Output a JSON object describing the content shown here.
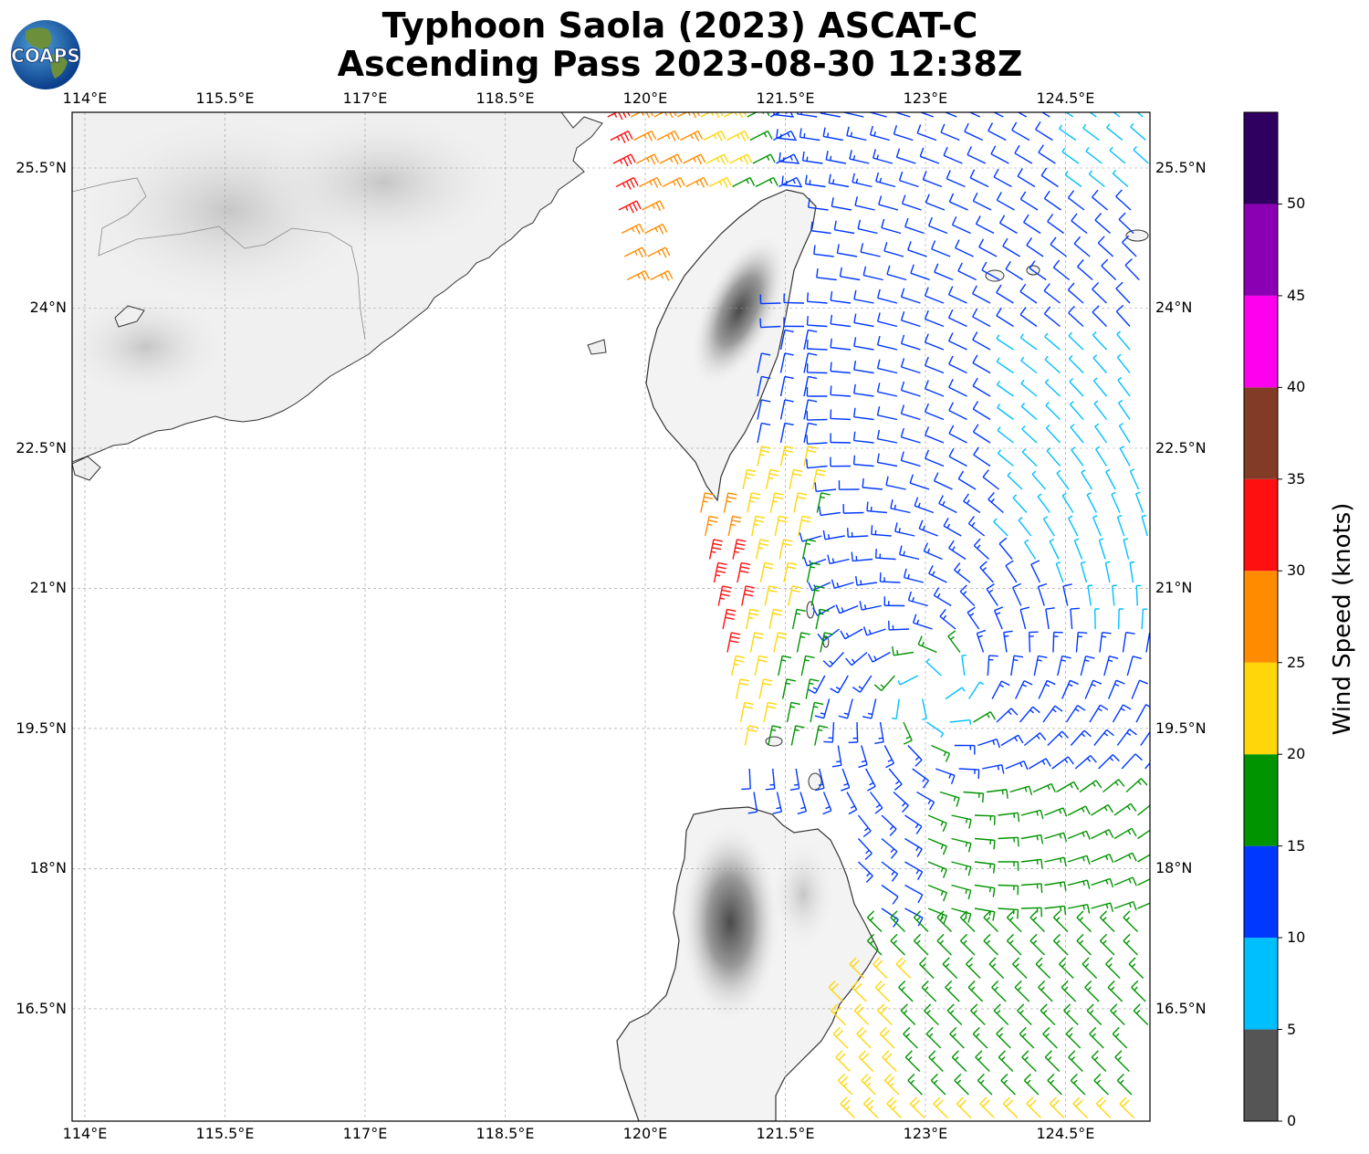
{
  "title": {
    "line1": "Typhoon Saola (2023) ASCAT-C",
    "line2": "Ascending Pass 2023-08-30 12:38Z"
  },
  "logo": {
    "text": "COAPS",
    "icon": "globe-logo-icon"
  },
  "map": {
    "lon_range": [
      114.0,
      125.5
    ],
    "lat_range": [
      15.3,
      26.1
    ],
    "lon_ticks": [
      {
        "value": 114.0,
        "label": "114°E"
      },
      {
        "value": 115.5,
        "label": "115.5°E"
      },
      {
        "value": 117.0,
        "label": "117°E"
      },
      {
        "value": 118.5,
        "label": "118.5°E"
      },
      {
        "value": 120.0,
        "label": "120°E"
      },
      {
        "value": 121.5,
        "label": "121.5°E"
      },
      {
        "value": 123.0,
        "label": "123°E"
      },
      {
        "value": 124.5,
        "label": "124.5°E"
      }
    ],
    "lat_ticks": [
      {
        "value": 25.5,
        "label": "25.5°N"
      },
      {
        "value": 24.0,
        "label": "24°N"
      },
      {
        "value": 22.5,
        "label": "22.5°N"
      },
      {
        "value": 21.0,
        "label": "21°N"
      },
      {
        "value": 19.5,
        "label": "19.5°N"
      },
      {
        "value": 18.0,
        "label": "18°N"
      },
      {
        "value": 16.5,
        "label": "16.5°N"
      }
    ],
    "gridlines": true,
    "storm_center": {
      "lon": 123.1,
      "lat": 19.9
    }
  },
  "colorbar": {
    "title": "Wind Speed (knots)",
    "ticks": [
      "0",
      "5",
      "10",
      "15",
      "20",
      "25",
      "30",
      "35",
      "40",
      "45",
      "50"
    ],
    "bins": [
      {
        "min": 0,
        "max": 5,
        "color": "#555555"
      },
      {
        "min": 5,
        "max": 10,
        "color": "#00bfff"
      },
      {
        "min": 10,
        "max": 15,
        "color": "#0038ff"
      },
      {
        "min": 15,
        "max": 20,
        "color": "#009400"
      },
      {
        "min": 20,
        "max": 25,
        "color": "#ffd60a"
      },
      {
        "min": 25,
        "max": 30,
        "color": "#ff8c00"
      },
      {
        "min": 30,
        "max": 35,
        "color": "#ff1010"
      },
      {
        "min": 35,
        "max": 40,
        "color": "#823b26"
      },
      {
        "min": 40,
        "max": 45,
        "color": "#ff00ee"
      },
      {
        "min": 45,
        "max": 50,
        "color": "#8b00b3"
      },
      {
        "min": 50,
        "max": 55,
        "color": "#300060"
      }
    ]
  }
}
